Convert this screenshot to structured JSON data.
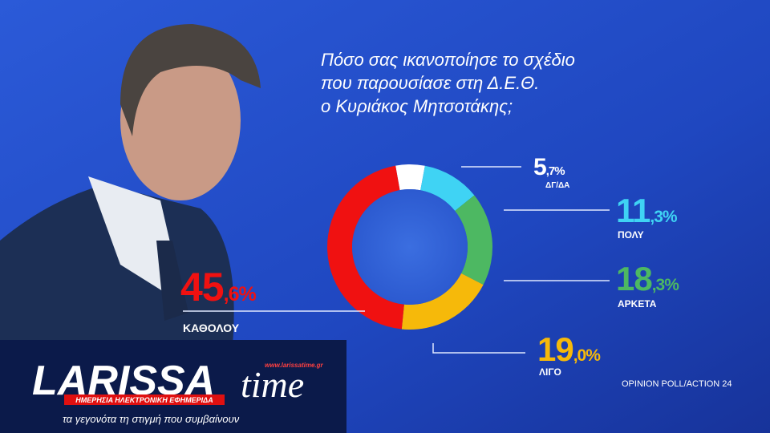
{
  "chart_data": {
    "type": "donut",
    "title": [
      "Πόσο σας ικανοποίησε το σχέδιο",
      "που παρουσίασε στη Δ.Ε.Θ.",
      "ο Κυριάκος Μητσοτάκης;"
    ],
    "categories": [
      "ΔΓ/ΔΑ",
      "ΠΟΛΥ",
      "ΑΡΚΕΤΑ",
      "ΛΙΓΟ",
      "ΚΑΘΟΛΟΥ"
    ],
    "values": [
      5.7,
      11.3,
      18.3,
      19.0,
      45.6
    ],
    "value_labels": [
      "5,7%",
      "11,3%",
      "18,3%",
      "19,0%",
      "45,6%"
    ],
    "colors": [
      "#ffffff",
      "#3fd3f4",
      "#4db862",
      "#f6b90a",
      "#f01111"
    ],
    "source": "OPINION POLL/ACTION 24"
  },
  "logo": {
    "name": "LARISSA",
    "name2": "time",
    "url": "www.larissatime.gr",
    "tagline": "ΗΜΕΡΗΣΙΑ ΗΛΕΚΤΡΟΝΙΚΗ ΕΦΗΜΕΡΙΔΑ",
    "slogan": "τα γεγονότα τη στιγμή που συμβαίνουν"
  }
}
